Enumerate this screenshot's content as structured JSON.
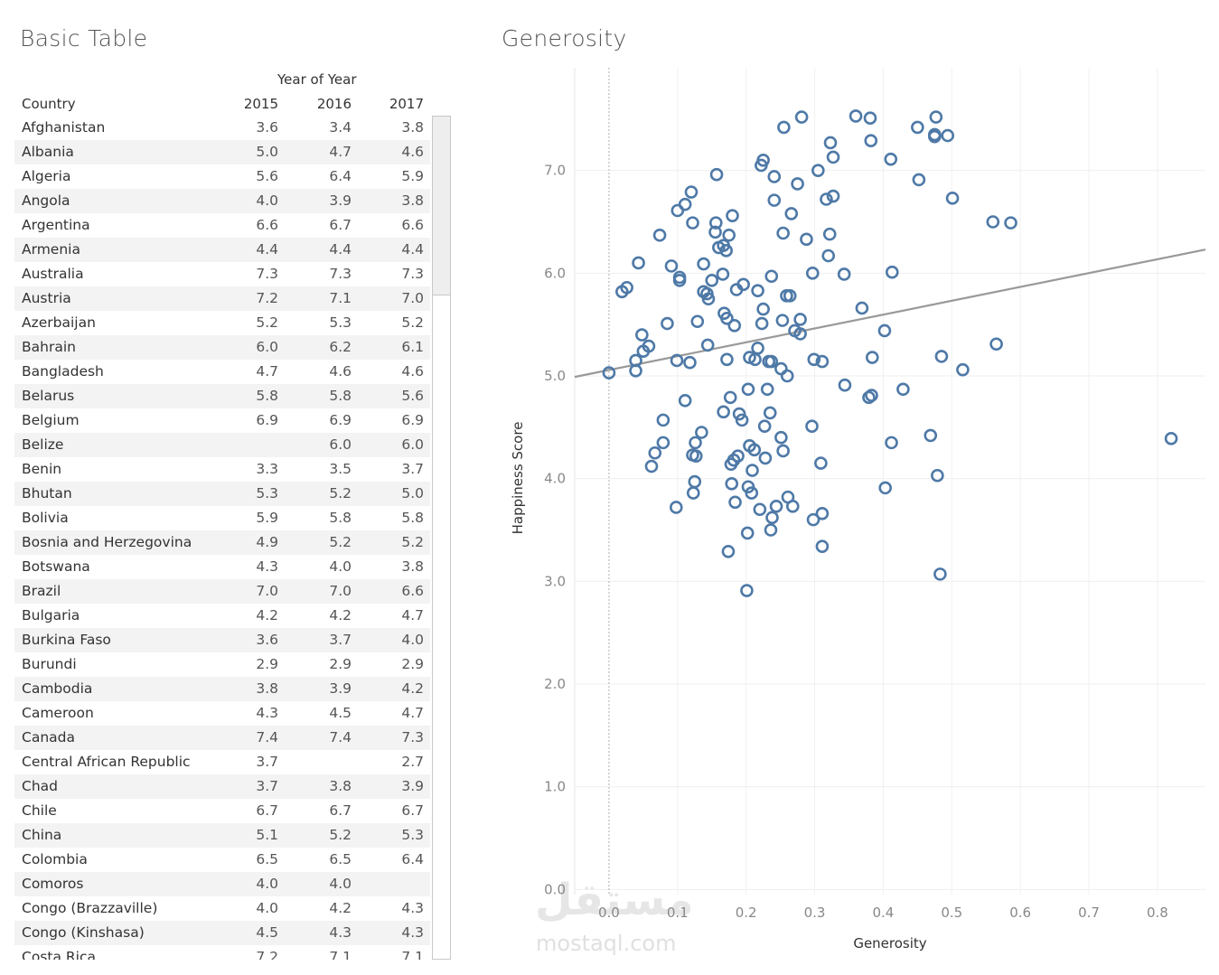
{
  "left_panel": {
    "title": "Basic Table",
    "column_group_label": "Year of Year",
    "row_header": "Country",
    "years": [
      "2015",
      "2016",
      "2017"
    ],
    "rows": [
      {
        "country": "Afghanistan",
        "v2015": "3.6",
        "v2016": "3.4",
        "v2017": "3.8"
      },
      {
        "country": "Albania",
        "v2015": "5.0",
        "v2016": "4.7",
        "v2017": "4.6"
      },
      {
        "country": "Algeria",
        "v2015": "5.6",
        "v2016": "6.4",
        "v2017": "5.9"
      },
      {
        "country": "Angola",
        "v2015": "4.0",
        "v2016": "3.9",
        "v2017": "3.8"
      },
      {
        "country": "Argentina",
        "v2015": "6.6",
        "v2016": "6.7",
        "v2017": "6.6"
      },
      {
        "country": "Armenia",
        "v2015": "4.4",
        "v2016": "4.4",
        "v2017": "4.4"
      },
      {
        "country": "Australia",
        "v2015": "7.3",
        "v2016": "7.3",
        "v2017": "7.3"
      },
      {
        "country": "Austria",
        "v2015": "7.2",
        "v2016": "7.1",
        "v2017": "7.0"
      },
      {
        "country": "Azerbaijan",
        "v2015": "5.2",
        "v2016": "5.3",
        "v2017": "5.2"
      },
      {
        "country": "Bahrain",
        "v2015": "6.0",
        "v2016": "6.2",
        "v2017": "6.1"
      },
      {
        "country": "Bangladesh",
        "v2015": "4.7",
        "v2016": "4.6",
        "v2017": "4.6"
      },
      {
        "country": "Belarus",
        "v2015": "5.8",
        "v2016": "5.8",
        "v2017": "5.6"
      },
      {
        "country": "Belgium",
        "v2015": "6.9",
        "v2016": "6.9",
        "v2017": "6.9"
      },
      {
        "country": "Belize",
        "v2015": "",
        "v2016": "6.0",
        "v2017": "6.0"
      },
      {
        "country": "Benin",
        "v2015": "3.3",
        "v2016": "3.5",
        "v2017": "3.7"
      },
      {
        "country": "Bhutan",
        "v2015": "5.3",
        "v2016": "5.2",
        "v2017": "5.0"
      },
      {
        "country": "Bolivia",
        "v2015": "5.9",
        "v2016": "5.8",
        "v2017": "5.8"
      },
      {
        "country": "Bosnia and Herzegovina",
        "v2015": "4.9",
        "v2016": "5.2",
        "v2017": "5.2"
      },
      {
        "country": "Botswana",
        "v2015": "4.3",
        "v2016": "4.0",
        "v2017": "3.8"
      },
      {
        "country": "Brazil",
        "v2015": "7.0",
        "v2016": "7.0",
        "v2017": "6.6"
      },
      {
        "country": "Bulgaria",
        "v2015": "4.2",
        "v2016": "4.2",
        "v2017": "4.7"
      },
      {
        "country": "Burkina Faso",
        "v2015": "3.6",
        "v2016": "3.7",
        "v2017": "4.0"
      },
      {
        "country": "Burundi",
        "v2015": "2.9",
        "v2016": "2.9",
        "v2017": "2.9"
      },
      {
        "country": "Cambodia",
        "v2015": "3.8",
        "v2016": "3.9",
        "v2017": "4.2"
      },
      {
        "country": "Cameroon",
        "v2015": "4.3",
        "v2016": "4.5",
        "v2017": "4.7"
      },
      {
        "country": "Canada",
        "v2015": "7.4",
        "v2016": "7.4",
        "v2017": "7.3"
      },
      {
        "country": "Central African Republic",
        "v2015": "3.7",
        "v2016": "",
        "v2017": "2.7"
      },
      {
        "country": "Chad",
        "v2015": "3.7",
        "v2016": "3.8",
        "v2017": "3.9"
      },
      {
        "country": "Chile",
        "v2015": "6.7",
        "v2016": "6.7",
        "v2017": "6.7"
      },
      {
        "country": "China",
        "v2015": "5.1",
        "v2016": "5.2",
        "v2017": "5.3"
      },
      {
        "country": "Colombia",
        "v2015": "6.5",
        "v2016": "6.5",
        "v2017": "6.4"
      },
      {
        "country": "Comoros",
        "v2015": "4.0",
        "v2016": "4.0",
        "v2017": ""
      },
      {
        "country": "Congo (Brazzaville)",
        "v2015": "4.0",
        "v2016": "4.2",
        "v2017": "4.3"
      },
      {
        "country": "Congo (Kinshasa)",
        "v2015": "4.5",
        "v2016": "4.3",
        "v2017": "4.3"
      },
      {
        "country": "Costa Rica",
        "v2015": "7.2",
        "v2016": "7.1",
        "v2017": "7.1"
      }
    ]
  },
  "right_panel": {
    "title": "Generosity"
  },
  "watermark": {
    "arabic": "مستقل",
    "latin": "mostaql.com"
  },
  "chart_data": {
    "type": "scatter",
    "title": "Generosity",
    "xlabel": "Generosity",
    "ylabel": "Happiness Score",
    "xlim": [
      -0.05,
      0.87
    ],
    "ylim": [
      -0.05,
      8.0
    ],
    "x_ticks": [
      "0.0",
      "0.1",
      "0.2",
      "0.3",
      "0.4",
      "0.5",
      "0.6",
      "0.7",
      "0.8"
    ],
    "y_ticks": [
      "0.0",
      "1.0",
      "2.0",
      "3.0",
      "4.0",
      "5.0",
      "6.0",
      "7.0"
    ],
    "grid": true,
    "marker_color": "#4e79a7",
    "trend_line": {
      "color": "#999999",
      "x": [
        -0.05,
        0.87
      ],
      "y": [
        4.99,
        6.23
      ]
    },
    "points": [
      [
        0.255,
        7.42
      ],
      [
        0.281,
        7.52
      ],
      [
        0.36,
        7.53
      ],
      [
        0.381,
        7.51
      ],
      [
        0.477,
        7.52
      ],
      [
        0.45,
        7.42
      ],
      [
        0.475,
        7.35
      ],
      [
        0.475,
        7.33
      ],
      [
        0.494,
        7.34
      ],
      [
        0.382,
        7.29
      ],
      [
        0.323,
        7.27
      ],
      [
        0.327,
        7.13
      ],
      [
        0.411,
        7.11
      ],
      [
        0.225,
        7.1
      ],
      [
        0.222,
        7.05
      ],
      [
        0.305,
        7.0
      ],
      [
        0.157,
        6.96
      ],
      [
        0.241,
        6.94
      ],
      [
        0.452,
        6.91
      ],
      [
        0.275,
        6.87
      ],
      [
        0.12,
        6.79
      ],
      [
        0.327,
        6.75
      ],
      [
        0.317,
        6.72
      ],
      [
        0.501,
        6.73
      ],
      [
        0.241,
        6.71
      ],
      [
        0.111,
        6.67
      ],
      [
        0.1,
        6.61
      ],
      [
        0.266,
        6.58
      ],
      [
        0.18,
        6.56
      ],
      [
        0.56,
        6.5
      ],
      [
        0.586,
        6.49
      ],
      [
        0.156,
        6.49
      ],
      [
        0.122,
        6.49
      ],
      [
        0.155,
        6.4
      ],
      [
        0.322,
        6.38
      ],
      [
        0.254,
        6.39
      ],
      [
        0.175,
        6.37
      ],
      [
        0.074,
        6.37
      ],
      [
        0.288,
        6.33
      ],
      [
        0.16,
        6.25
      ],
      [
        0.167,
        6.27
      ],
      [
        0.171,
        6.22
      ],
      [
        0.32,
        6.17
      ],
      [
        0.043,
        6.1
      ],
      [
        0.138,
        6.09
      ],
      [
        0.091,
        6.07
      ],
      [
        0.413,
        6.01
      ],
      [
        0.297,
        6.0
      ],
      [
        0.343,
        5.99
      ],
      [
        0.237,
        5.97
      ],
      [
        0.103,
        5.96
      ],
      [
        0.166,
        5.99
      ],
      [
        0.103,
        5.93
      ],
      [
        0.15,
        5.93
      ],
      [
        0.196,
        5.89
      ],
      [
        0.186,
        5.84
      ],
      [
        0.217,
        5.83
      ],
      [
        0.019,
        5.82
      ],
      [
        0.026,
        5.86
      ],
      [
        0.138,
        5.82
      ],
      [
        0.143,
        5.8
      ],
      [
        0.145,
        5.75
      ],
      [
        0.259,
        5.78
      ],
      [
        0.264,
        5.78
      ],
      [
        0.369,
        5.66
      ],
      [
        0.225,
        5.65
      ],
      [
        0.168,
        5.61
      ],
      [
        0.172,
        5.56
      ],
      [
        0.129,
        5.53
      ],
      [
        0.085,
        5.51
      ],
      [
        0.183,
        5.49
      ],
      [
        0.223,
        5.51
      ],
      [
        0.279,
        5.55
      ],
      [
        0.253,
        5.54
      ],
      [
        0.271,
        5.44
      ],
      [
        0.279,
        5.41
      ],
      [
        0.402,
        5.44
      ],
      [
        0.048,
        5.4
      ],
      [
        0.058,
        5.29
      ],
      [
        0.144,
        5.3
      ],
      [
        0.05,
        5.24
      ],
      [
        0.217,
        5.27
      ],
      [
        0.565,
        5.31
      ],
      [
        0.485,
        5.19
      ],
      [
        0.384,
        5.18
      ],
      [
        0.039,
        5.15
      ],
      [
        0.099,
        5.15
      ],
      [
        0.118,
        5.13
      ],
      [
        0.172,
        5.16
      ],
      [
        0.205,
        5.18
      ],
      [
        0.213,
        5.16
      ],
      [
        0.233,
        5.14
      ],
      [
        0.237,
        5.14
      ],
      [
        0.299,
        5.16
      ],
      [
        0.311,
        5.14
      ],
      [
        0.251,
        5.07
      ],
      [
        0.516,
        5.06
      ],
      [
        0.039,
        5.05
      ],
      [
        0.0,
        5.03
      ],
      [
        0.26,
        5.0
      ],
      [
        0.344,
        4.91
      ],
      [
        0.429,
        4.87
      ],
      [
        0.231,
        4.87
      ],
      [
        0.203,
        4.87
      ],
      [
        0.383,
        4.81
      ],
      [
        0.379,
        4.79
      ],
      [
        0.177,
        4.79
      ],
      [
        0.111,
        4.76
      ],
      [
        0.235,
        4.64
      ],
      [
        0.167,
        4.65
      ],
      [
        0.19,
        4.63
      ],
      [
        0.194,
        4.57
      ],
      [
        0.079,
        4.57
      ],
      [
        0.227,
        4.51
      ],
      [
        0.296,
        4.51
      ],
      [
        0.135,
        4.45
      ],
      [
        0.469,
        4.42
      ],
      [
        0.251,
        4.4
      ],
      [
        0.82,
        4.39
      ],
      [
        0.412,
        4.35
      ],
      [
        0.079,
        4.35
      ],
      [
        0.126,
        4.35
      ],
      [
        0.205,
        4.32
      ],
      [
        0.212,
        4.28
      ],
      [
        0.254,
        4.27
      ],
      [
        0.067,
        4.25
      ],
      [
        0.122,
        4.23
      ],
      [
        0.127,
        4.22
      ],
      [
        0.188,
        4.22
      ],
      [
        0.182,
        4.18
      ],
      [
        0.228,
        4.2
      ],
      [
        0.178,
        4.14
      ],
      [
        0.309,
        4.15
      ],
      [
        0.062,
        4.12
      ],
      [
        0.209,
        4.08
      ],
      [
        0.479,
        4.03
      ],
      [
        0.125,
        3.97
      ],
      [
        0.179,
        3.95
      ],
      [
        0.203,
        3.92
      ],
      [
        0.403,
        3.91
      ],
      [
        0.208,
        3.86
      ],
      [
        0.123,
        3.86
      ],
      [
        0.261,
        3.82
      ],
      [
        0.184,
        3.77
      ],
      [
        0.244,
        3.73
      ],
      [
        0.268,
        3.73
      ],
      [
        0.098,
        3.72
      ],
      [
        0.22,
        3.7
      ],
      [
        0.311,
        3.66
      ],
      [
        0.238,
        3.62
      ],
      [
        0.298,
        3.6
      ],
      [
        0.202,
        3.47
      ],
      [
        0.236,
        3.5
      ],
      [
        0.174,
        3.29
      ],
      [
        0.311,
        3.34
      ],
      [
        0.483,
        3.07
      ],
      [
        0.201,
        2.91
      ]
    ]
  }
}
